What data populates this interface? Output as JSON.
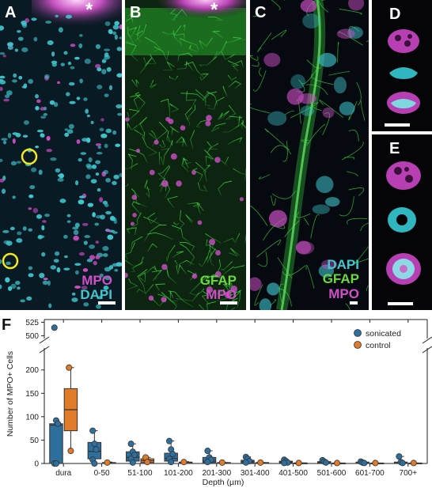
{
  "panels": {
    "A": {
      "label": "A",
      "marker": "*",
      "stains": [
        "MPO",
        "DAPI"
      ]
    },
    "B": {
      "label": "B",
      "marker": "*",
      "stains": [
        "GFAP",
        "MPO"
      ]
    },
    "C": {
      "label": "C",
      "stains": [
        "DAPI",
        "GFAP",
        "MPO"
      ]
    },
    "D": {
      "label": "D"
    },
    "E": {
      "label": "E"
    }
  },
  "colors": {
    "mpo": "#d04fc8",
    "dapi": "#3fc7cf",
    "gfap": "#3bd13f",
    "circle": "#f2ea1b"
  },
  "chart_panel_label": "F",
  "chart_data": {
    "type": "box",
    "xlabel": "Depth (µm)",
    "ylabel": "Number of MPO+ Cells",
    "categories": [
      "dura",
      "0-50",
      "51-100",
      "101-200",
      "201-300",
      "301-400",
      "401-500",
      "501-600",
      "601-700",
      "700+"
    ],
    "y_ticks_lower": [
      0,
      50,
      100,
      150,
      200
    ],
    "y_ticks_upper": [
      500,
      525
    ],
    "ylim_lower": [
      0,
      230
    ],
    "ylim_upper": [
      495,
      530
    ],
    "broken_axis": true,
    "legend_position": "top-right",
    "series": [
      {
        "name": "sonicated",
        "color": "#2e6f9e",
        "boxes": [
          {
            "q1": 0,
            "median": 82,
            "q3": 85,
            "min": 0,
            "max": 92
          },
          {
            "q1": 10,
            "median": 26,
            "q3": 45,
            "min": 0,
            "max": 70
          },
          {
            "q1": 5,
            "median": 13,
            "q3": 25,
            "min": 0,
            "max": 42
          },
          {
            "q1": 5,
            "median": 11,
            "q3": 22,
            "min": 0,
            "max": 48
          },
          {
            "q1": 2,
            "median": 5,
            "q3": 13,
            "min": 0,
            "max": 27
          },
          {
            "q1": 1,
            "median": 4,
            "q3": 7,
            "min": 0,
            "max": 14
          },
          {
            "q1": 1,
            "median": 3,
            "q3": 5,
            "min": 0,
            "max": 8
          },
          {
            "q1": 1,
            "median": 2,
            "q3": 4,
            "min": 0,
            "max": 7
          },
          {
            "q1": 0,
            "median": 1,
            "q3": 3,
            "min": 0,
            "max": 4
          },
          {
            "q1": 0,
            "median": 1,
            "q3": 3,
            "min": 0,
            "max": 15
          }
        ],
        "points": [
          [
            515,
            92,
            85,
            0,
            0
          ],
          [
            70,
            42,
            30,
            8,
            0
          ],
          [
            42,
            25,
            18,
            10,
            2
          ],
          [
            48,
            30,
            20,
            10,
            3
          ],
          [
            27,
            13,
            8,
            3
          ],
          [
            14,
            10,
            5,
            2
          ],
          [
            8,
            5,
            2,
            1
          ],
          [
            7,
            4,
            2
          ],
          [
            4,
            2,
            1
          ],
          [
            15,
            3,
            1
          ]
        ]
      },
      {
        "name": "control",
        "color": "#e07b2a",
        "boxes": [
          {
            "q1": 70,
            "median": 115,
            "q3": 160,
            "min": 27,
            "max": 205
          },
          {
            "q1": 0,
            "median": 1,
            "q3": 2,
            "min": 0,
            "max": 3
          },
          {
            "q1": 2,
            "median": 6,
            "q3": 10,
            "min": 0,
            "max": 13
          },
          {
            "q1": 0,
            "median": 2,
            "q3": 3,
            "min": 0,
            "max": 4
          },
          {
            "q1": 0,
            "median": 1,
            "q3": 2,
            "min": 0,
            "max": 2
          },
          {
            "q1": 0,
            "median": 1,
            "q3": 2,
            "min": 0,
            "max": 2
          },
          {
            "q1": 0,
            "median": 1,
            "q3": 1,
            "min": 0,
            "max": 1
          },
          {
            "q1": 0,
            "median": 0,
            "q3": 1,
            "min": 0,
            "max": 1
          },
          {
            "q1": 0,
            "median": 0,
            "q3": 1,
            "min": 0,
            "max": 1
          },
          {
            "q1": 0,
            "median": 0,
            "q3": 1,
            "min": 0,
            "max": 1
          }
        ],
        "points": [
          [
            205,
            27
          ],
          [
            2
          ],
          [
            13,
            3
          ],
          [
            3
          ],
          [
            2
          ],
          [
            2
          ],
          [
            1
          ],
          [
            1
          ],
          [
            1
          ],
          [
            1
          ]
        ]
      }
    ]
  }
}
